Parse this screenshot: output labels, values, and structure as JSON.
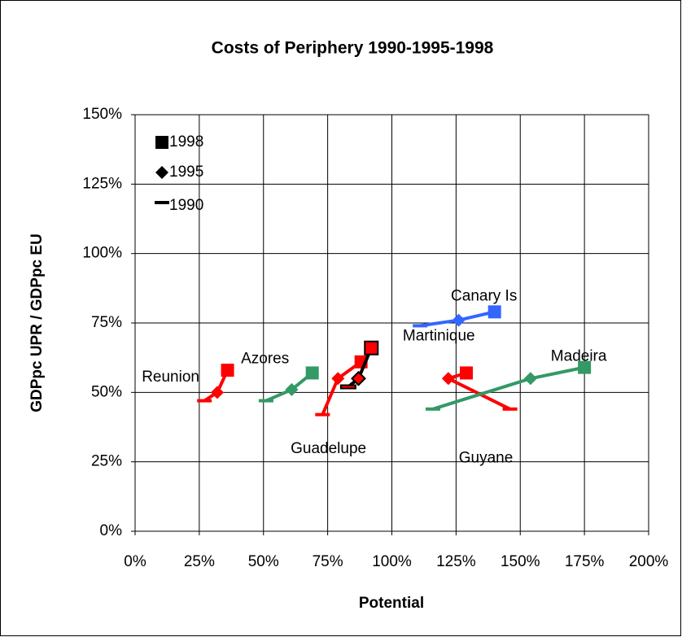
{
  "chart_data": {
    "type": "line",
    "title": "Costs of Periphery 1990-1995-1998",
    "x_label": "Potential",
    "y_label": "GDPpc UPR / GDPpc EU",
    "marker_labels": [
      "1990",
      "1995",
      "1998"
    ],
    "xlim": [
      0,
      200
    ],
    "xticks": [
      {
        "value": 0,
        "label": "0%"
      },
      {
        "value": 25,
        "label": "25%"
      },
      {
        "value": 50,
        "label": "50%"
      },
      {
        "value": 75,
        "label": "75%"
      },
      {
        "value": 100,
        "label": "100%"
      },
      {
        "value": 125,
        "label": "125%"
      },
      {
        "value": 150,
        "label": "150%"
      },
      {
        "value": 175,
        "label": "175%"
      },
      {
        "value": 200,
        "label": "200%"
      }
    ],
    "ylim": [
      0,
      150
    ],
    "yticks": [
      {
        "value": 0,
        "label": "0%"
      },
      {
        "value": 25,
        "label": "25%"
      },
      {
        "value": 50,
        "label": "50%"
      },
      {
        "value": 75,
        "label": "75%"
      },
      {
        "value": 100,
        "label": "100%"
      },
      {
        "value": 125,
        "label": "125%"
      },
      {
        "value": 150,
        "label": "150%"
      }
    ],
    "grid": true,
    "series": [
      {
        "name": "Reunion",
        "color": "#ff0000",
        "x": [
          27,
          32,
          36
        ],
        "values": [
          47,
          50,
          58
        ]
      },
      {
        "name": "Azores",
        "color": "#339966",
        "x": [
          51,
          61,
          69
        ],
        "values": [
          47,
          51,
          57
        ]
      },
      {
        "name": "Guadelupe",
        "color": "#ff0000",
        "x": [
          73,
          79,
          88
        ],
        "values": [
          42,
          55,
          61
        ]
      },
      {
        "name": "Martinique",
        "color": "#000000",
        "marker_color": "#ff0000",
        "x": [
          83,
          87,
          92
        ],
        "values": [
          52,
          55,
          66
        ]
      },
      {
        "name": "Guyane",
        "color": "#ff0000",
        "x": [
          146,
          122,
          129
        ],
        "values": [
          44,
          55,
          57
        ]
      },
      {
        "name": "Madeira",
        "color": "#339966",
        "x": [
          116,
          154,
          175
        ],
        "values": [
          44,
          55,
          59
        ]
      },
      {
        "name": "Canary Is",
        "color": "#3366ff",
        "x": [
          111,
          126,
          140
        ],
        "values": [
          74,
          76,
          79
        ]
      }
    ]
  }
}
